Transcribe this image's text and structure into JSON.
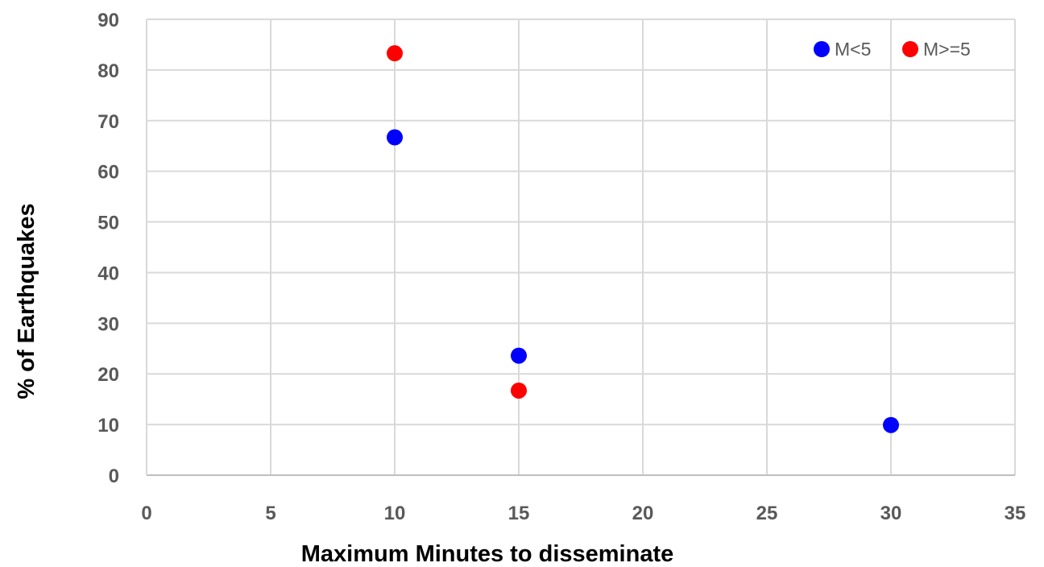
{
  "chart_data": {
    "type": "scatter",
    "xlabel": "Maximum Minutes to disseminate",
    "ylabel": "% of Earthquakes",
    "xlim": [
      0,
      35
    ],
    "ylim": [
      0,
      90
    ],
    "x_ticks": [
      0,
      5,
      10,
      15,
      20,
      25,
      30,
      35
    ],
    "y_ticks": [
      0,
      10,
      20,
      30,
      40,
      50,
      60,
      70,
      80,
      90
    ],
    "grid": true,
    "legend_position": "top-right",
    "series": [
      {
        "name": "M<5",
        "color": "#0000ff",
        "points": [
          {
            "x": 10,
            "y": 66.7
          },
          {
            "x": 15,
            "y": 23.6
          },
          {
            "x": 30,
            "y": 9.9
          }
        ]
      },
      {
        "name": "M>=5",
        "color": "#ff0000",
        "points": [
          {
            "x": 10,
            "y": 83.3
          },
          {
            "x": 15,
            "y": 16.7
          }
        ]
      }
    ]
  }
}
